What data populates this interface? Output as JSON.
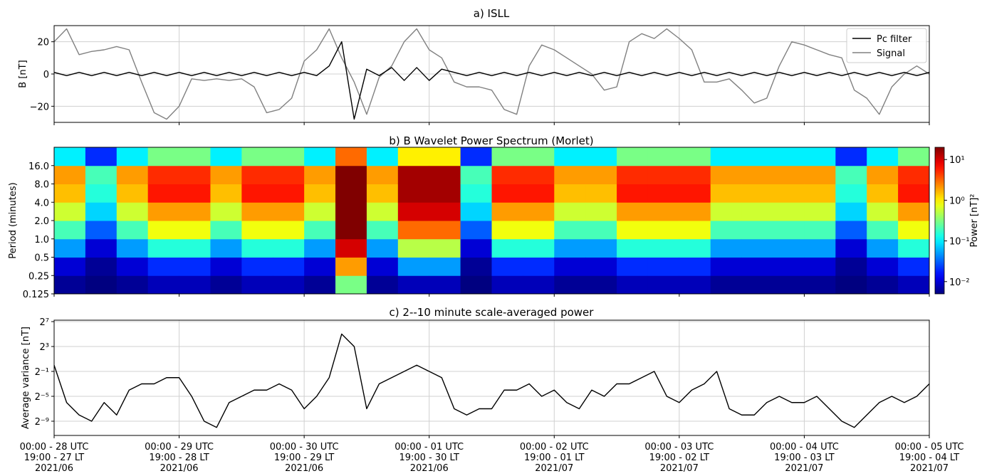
{
  "chart_data": [
    {
      "type": "line",
      "title": "a) ISLL",
      "ylabel": "B [nT]",
      "x": [
        0,
        0.1,
        0.2,
        0.3,
        0.4,
        0.5,
        0.6,
        0.7,
        0.8,
        0.9,
        1.0,
        1.1,
        1.2,
        1.3,
        1.4,
        1.5,
        1.6,
        1.7,
        1.8,
        1.9,
        2.0,
        2.1,
        2.2,
        2.3,
        2.4,
        2.5,
        2.6,
        2.7,
        2.8,
        2.9,
        3.0,
        3.1,
        3.2,
        3.3,
        3.4,
        3.5,
        3.6,
        3.7,
        3.8,
        3.9,
        4.0,
        4.1,
        4.2,
        4.3,
        4.4,
        4.5,
        4.6,
        4.7,
        4.8,
        4.9,
        5.0,
        5.1,
        5.2,
        5.3,
        5.4,
        5.5,
        5.6,
        5.7,
        5.8,
        5.9,
        6.0,
        6.1,
        6.2,
        6.3,
        6.4,
        6.5,
        6.6,
        6.7,
        6.8,
        6.9,
        7.0
      ],
      "series": [
        {
          "name": "Pc filter",
          "color": "#000000",
          "values": [
            1,
            -1,
            1,
            -1,
            1,
            -1,
            1,
            -1,
            1,
            -1,
            1,
            -1,
            1,
            -1,
            1,
            -1,
            1,
            -1,
            1,
            -1,
            1,
            -1,
            5,
            20,
            -28,
            3,
            -1,
            4,
            -4,
            4,
            -4,
            3,
            1,
            -1,
            1,
            -1,
            1,
            -1,
            1,
            -1,
            1,
            -1,
            1,
            -1,
            1,
            -1,
            1,
            -1,
            1,
            -1,
            1,
            -1,
            1,
            -1,
            1,
            -1,
            1,
            -1,
            1,
            -1,
            1,
            -1,
            1,
            -1,
            1,
            -1,
            1,
            -1,
            1,
            -1,
            1
          ]
        },
        {
          "name": "Signal",
          "color": "#808080",
          "values": [
            20,
            28,
            12,
            14,
            15,
            17,
            15,
            -5,
            -24,
            -28,
            -20,
            -3,
            -4,
            -3,
            -4,
            -3,
            -8,
            -24,
            -22,
            -15,
            8,
            15,
            28,
            10,
            -5,
            -25,
            -2,
            5,
            20,
            28,
            15,
            10,
            -5,
            -8,
            -8,
            -10,
            -22,
            -25,
            5,
            18,
            15,
            10,
            5,
            0,
            -10,
            -8,
            20,
            25,
            22,
            28,
            22,
            15,
            -5,
            -5,
            -3,
            -10,
            -18,
            -15,
            5,
            20,
            18,
            15,
            12,
            10,
            -10,
            -15,
            -25,
            -8,
            0,
            5,
            0
          ]
        }
      ],
      "xlim": [
        0,
        7
      ],
      "ylim": [
        -30,
        30
      ],
      "yticks": [
        {
          "value": -20,
          "label": "−20"
        },
        0,
        20
      ],
      "grid": true,
      "legend": "upper right"
    },
    {
      "type": "heatmap",
      "title": "b) B Wavelet Power Spectrum (Morlet)",
      "ylabel": "Period (minutes)",
      "xbins": [
        0,
        0.25,
        0.5,
        0.75,
        1.0,
        1.25,
        1.5,
        1.75,
        2.0,
        2.25,
        2.5,
        2.75,
        3.0,
        3.25,
        3.5,
        3.75,
        4.0,
        4.25,
        4.5,
        4.75,
        5.0,
        5.25,
        5.5,
        5.75,
        6.0,
        6.25,
        6.5,
        6.75,
        7.0
      ],
      "ybins": [
        0.125,
        0.25,
        0.5,
        1,
        2,
        4,
        8,
        16,
        32
      ],
      "z": [
        [
          0.006,
          0.01,
          0.05,
          0.2,
          0.6,
          1.5,
          2,
          0.1
        ],
        [
          0.005,
          0.006,
          0.01,
          0.03,
          0.08,
          0.15,
          0.2,
          0.02
        ],
        [
          0.006,
          0.01,
          0.05,
          0.2,
          0.6,
          1.5,
          2,
          0.1
        ],
        [
          0.008,
          0.02,
          0.15,
          0.8,
          2,
          6,
          5,
          0.3
        ],
        [
          0.008,
          0.02,
          0.15,
          0.8,
          2,
          6,
          5,
          0.3
        ],
        [
          0.006,
          0.01,
          0.05,
          0.2,
          0.6,
          1.5,
          2,
          0.1
        ],
        [
          0.008,
          0.02,
          0.15,
          0.8,
          2,
          6,
          5,
          0.3
        ],
        [
          0.008,
          0.02,
          0.15,
          0.8,
          2,
          6,
          5,
          0.3
        ],
        [
          0.006,
          0.01,
          0.05,
          0.2,
          0.6,
          1.5,
          2,
          0.1
        ],
        [
          0.3,
          2,
          10,
          20,
          20,
          20,
          20,
          3
        ],
        [
          0.006,
          0.01,
          0.05,
          0.2,
          0.6,
          1.5,
          2,
          0.1
        ],
        [
          0.008,
          0.05,
          0.5,
          3,
          10,
          15,
          15,
          1
        ],
        [
          0.008,
          0.05,
          0.5,
          3,
          10,
          15,
          15,
          1
        ],
        [
          0.005,
          0.006,
          0.01,
          0.03,
          0.08,
          0.15,
          0.2,
          0.02
        ],
        [
          0.008,
          0.02,
          0.15,
          0.8,
          2,
          6,
          5,
          0.3
        ],
        [
          0.008,
          0.02,
          0.15,
          0.8,
          2,
          6,
          5,
          0.3
        ],
        [
          0.006,
          0.01,
          0.05,
          0.2,
          0.6,
          1.5,
          2,
          0.1
        ],
        [
          0.006,
          0.01,
          0.05,
          0.2,
          0.6,
          1.5,
          2,
          0.1
        ],
        [
          0.008,
          0.02,
          0.15,
          0.8,
          2,
          6,
          5,
          0.3
        ],
        [
          0.008,
          0.02,
          0.15,
          0.8,
          2,
          6,
          5,
          0.3
        ],
        [
          0.008,
          0.02,
          0.15,
          0.8,
          2,
          6,
          5,
          0.3
        ],
        [
          0.006,
          0.01,
          0.05,
          0.2,
          0.6,
          1.5,
          2,
          0.1
        ],
        [
          0.006,
          0.01,
          0.05,
          0.2,
          0.6,
          1.5,
          2,
          0.1
        ],
        [
          0.006,
          0.01,
          0.05,
          0.2,
          0.6,
          1.5,
          2,
          0.1
        ],
        [
          0.006,
          0.01,
          0.05,
          0.2,
          0.6,
          1.5,
          2,
          0.1
        ],
        [
          0.005,
          0.006,
          0.01,
          0.03,
          0.08,
          0.15,
          0.2,
          0.02
        ],
        [
          0.006,
          0.01,
          0.05,
          0.2,
          0.6,
          1.5,
          2,
          0.1
        ],
        [
          0.008,
          0.02,
          0.15,
          0.8,
          2,
          6,
          5,
          0.3
        ]
      ],
      "xlim": [
        0,
        7
      ],
      "ylim": [
        0.125,
        32
      ],
      "ylog": true,
      "yticks": [
        0.125,
        0.25,
        0.5,
        {
          "value": 1,
          "label": "1.0"
        },
        {
          "value": 2,
          "label": "2.0"
        },
        {
          "value": 4,
          "label": "4.0"
        },
        {
          "value": 8,
          "label": "8.0"
        },
        {
          "value": 16,
          "label": "16.0"
        }
      ],
      "colormap": "jet",
      "clim": [
        0.005,
        20
      ],
      "clog": true,
      "colorbar_label": "Power [nT]²",
      "cticks": [
        {
          "value": 0.01,
          "label": "10⁻²"
        },
        {
          "value": 0.1,
          "label": "10⁻¹"
        },
        {
          "value": 1,
          "label": "10⁰"
        },
        {
          "value": 10,
          "label": "10¹"
        }
      ]
    },
    {
      "type": "line",
      "title": "c) 2--10 minute scale-averaged power",
      "ylabel": "Average variance [nT]",
      "x": [
        0,
        0.1,
        0.2,
        0.3,
        0.4,
        0.5,
        0.6,
        0.7,
        0.8,
        0.9,
        1.0,
        1.1,
        1.2,
        1.3,
        1.4,
        1.5,
        1.6,
        1.7,
        1.8,
        1.9,
        2.0,
        2.1,
        2.2,
        2.3,
        2.4,
        2.5,
        2.6,
        2.7,
        2.8,
        2.9,
        3.0,
        3.1,
        3.2,
        3.3,
        3.4,
        3.5,
        3.6,
        3.7,
        3.8,
        3.9,
        4.0,
        4.1,
        4.2,
        4.3,
        4.4,
        4.5,
        4.6,
        4.7,
        4.8,
        4.9,
        5.0,
        5.1,
        5.2,
        5.3,
        5.4,
        5.5,
        5.6,
        5.7,
        5.8,
        5.9,
        6.0,
        6.1,
        6.2,
        6.3,
        6.4,
        6.5,
        6.6,
        6.7,
        6.8,
        6.9,
        7.0
      ],
      "series": [
        {
          "color": "#000000",
          "values": [
            1,
            0.015625,
            0.00390625,
            0.001953125,
            0.015625,
            0.00390625,
            0.0625,
            0.125,
            0.125,
            0.25,
            0.25,
            0.03125,
            0.001953125,
            0.0009765625,
            0.015625,
            0.03125,
            0.0625,
            0.0625,
            0.125,
            0.0625,
            0.0078125,
            0.03125,
            0.25,
            32,
            8,
            0.0078125,
            0.125,
            0.25,
            0.5,
            1,
            0.5,
            0.25,
            0.0078125,
            0.00390625,
            0.0078125,
            0.0078125,
            0.0625,
            0.0625,
            0.125,
            0.03125,
            0.0625,
            0.015625,
            0.0078125,
            0.0625,
            0.03125,
            0.125,
            0.125,
            0.25,
            0.5,
            0.03125,
            0.015625,
            0.0625,
            0.125,
            0.5,
            0.0078125,
            0.00390625,
            0.00390625,
            0.015625,
            0.03125,
            0.015625,
            0.015625,
            0.03125,
            0.0078125,
            0.001953125,
            0.0009765625,
            0.00390625,
            0.015625,
            0.03125,
            0.015625,
            0.03125,
            0.125
          ]
        }
      ],
      "xlim": [
        0,
        7
      ],
      "ylim": [
        0.0004,
        150
      ],
      "ylog": true,
      "yticks": [
        {
          "value": 0.001953125,
          "label": "2⁻⁹"
        },
        {
          "value": 0.03125,
          "label": "2⁻⁵"
        },
        {
          "value": 0.5,
          "label": "2⁻¹"
        },
        {
          "value": 8,
          "label": "2³"
        },
        {
          "value": 128,
          "label": "2⁷"
        }
      ],
      "xticks": [
        {
          "value": 0,
          "label": "00:00 - 28 UTC\n19:00 - 27 LT\n2021/06"
        },
        {
          "value": 1,
          "label": "00:00 - 29 UTC\n19:00 - 28 LT\n2021/06"
        },
        {
          "value": 2,
          "label": "00:00 - 30 UTC\n19:00 - 29 LT\n2021/06"
        },
        {
          "value": 3,
          "label": "00:00 - 01 UTC\n19:00 - 30 LT\n2021/06"
        },
        {
          "value": 4,
          "label": "00:00 - 02 UTC\n19:00 - 01 LT\n2021/07"
        },
        {
          "value": 5,
          "label": "00:00 - 03 UTC\n19:00 - 02 LT\n2021/07"
        },
        {
          "value": 6,
          "label": "00:00 - 04 UTC\n19:00 - 03 LT\n2021/07"
        },
        {
          "value": 7,
          "label": "00:00 - 05 UTC\n19:00 - 04 LT\n2021/07"
        }
      ],
      "grid": true
    }
  ]
}
